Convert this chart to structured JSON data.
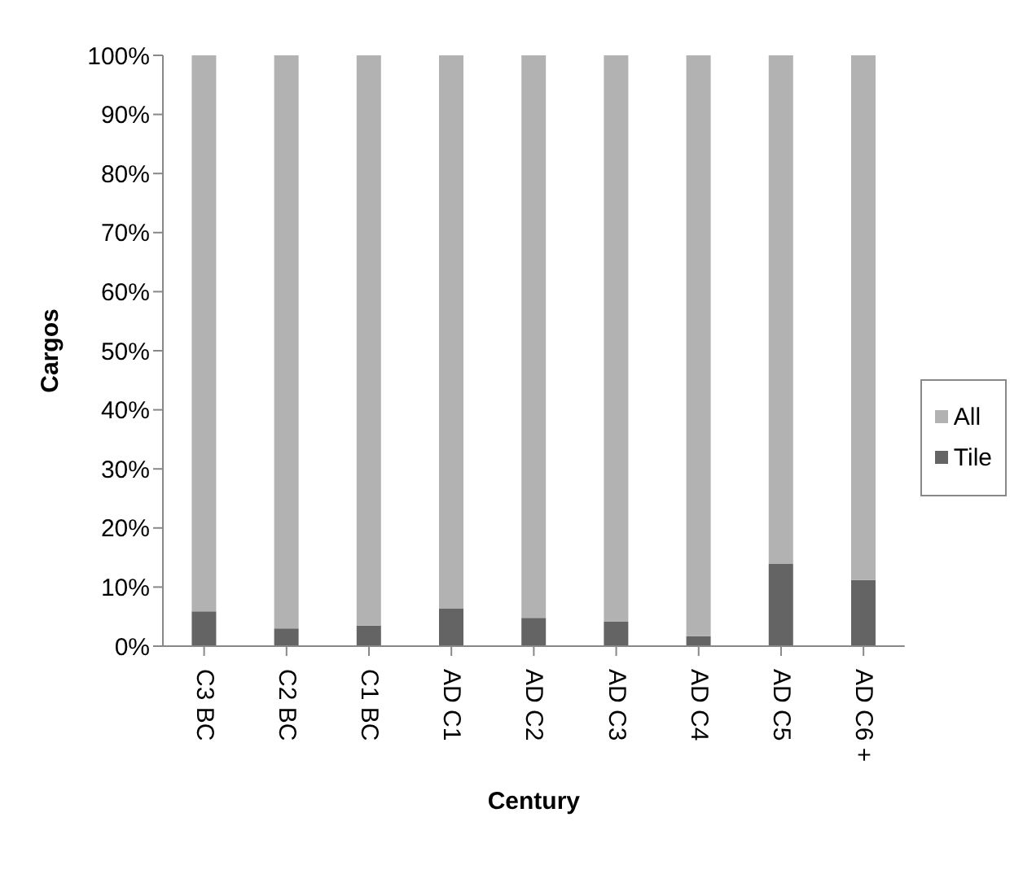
{
  "chart_data": {
    "type": "bar",
    "stacked": true,
    "xlabel": "Century",
    "ylabel": "Cargos",
    "categories": [
      "C3 BC",
      "C2 BC",
      "C1 BC",
      "AD C1",
      "AD C2",
      "AD C3",
      "AD C4",
      "AD C5",
      "AD C6 +"
    ],
    "series": [
      {
        "name": "Tile",
        "color": "#646464",
        "values": [
          5.9,
          3.0,
          3.5,
          6.4,
          4.8,
          4.2,
          1.7,
          13.9,
          11.2
        ]
      },
      {
        "name": "All",
        "color": "#b2b2b2",
        "values": [
          94.1,
          97.0,
          96.5,
          93.6,
          95.2,
          95.8,
          98.3,
          86.1,
          88.8
        ]
      }
    ],
    "ylim": [
      0,
      100
    ],
    "yticks": [
      {
        "value": 0,
        "label": "0%"
      },
      {
        "value": 10,
        "label": "10%"
      },
      {
        "value": 20,
        "label": "20%"
      },
      {
        "value": 30,
        "label": "30%"
      },
      {
        "value": 40,
        "label": "40%"
      },
      {
        "value": 50,
        "label": "50%"
      },
      {
        "value": 60,
        "label": "60%"
      },
      {
        "value": 70,
        "label": "70%"
      },
      {
        "value": 80,
        "label": "80%"
      },
      {
        "value": 90,
        "label": "90%"
      },
      {
        "value": 100,
        "label": "100%"
      }
    ],
    "grid": false,
    "legend": "right"
  }
}
